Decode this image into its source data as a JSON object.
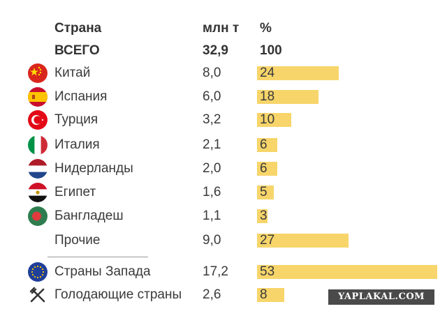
{
  "header": {
    "country_col": "Страна",
    "value_col": "млн т",
    "pct_col": "%"
  },
  "total": {
    "label": "ВСЕГО",
    "value": "32,9",
    "pct": "100"
  },
  "chart_data": {
    "type": "bar",
    "categories": [
      "Китай",
      "Испания",
      "Турция",
      "Италия",
      "Нидерланды",
      "Египет",
      "Бангладеш",
      "Прочие",
      "Страны Запада",
      "Голодающие страны"
    ],
    "values_mln_t": [
      "8,0",
      "6,0",
      "3,2",
      "2,1",
      "2,0",
      "1,6",
      "1,1",
      "9,0",
      "17,2",
      "2,6"
    ],
    "pct": [
      24,
      18,
      10,
      6,
      6,
      5,
      3,
      27,
      53,
      8
    ],
    "xlim": [
      0,
      53
    ],
    "bar_color": "#f7d56a"
  },
  "rows": [
    {
      "label": "Китай",
      "value": "8,0",
      "pct": "24",
      "icon": "china-flag-icon"
    },
    {
      "label": "Испания",
      "value": "6,0",
      "pct": "18",
      "icon": "spain-flag-icon"
    },
    {
      "label": "Турция",
      "value": "3,2",
      "pct": "10",
      "icon": "turkey-flag-icon"
    },
    {
      "label": "Италия",
      "value": "2,1",
      "pct": "6",
      "icon": "italy-flag-icon"
    },
    {
      "label": "Нидерланды",
      "value": "2,0",
      "pct": "6",
      "icon": "netherlands-flag-icon"
    },
    {
      "label": "Египет",
      "value": "1,6",
      "pct": "5",
      "icon": "egypt-flag-icon"
    },
    {
      "label": "Бангладеш",
      "value": "1,1",
      "pct": "3",
      "icon": "bangladesh-flag-icon"
    },
    {
      "label": "Прочие",
      "value": "9,0",
      "pct": "27",
      "icon": ""
    },
    {
      "label": "Страны Запада",
      "value": "17,2",
      "pct": "53",
      "icon": "eu-flag-icon"
    },
    {
      "label": "Голодающие страны",
      "value": "2,6",
      "pct": "8",
      "icon": "fork-knife-icon"
    }
  ],
  "watermark": "YAPLAKAL.COM"
}
